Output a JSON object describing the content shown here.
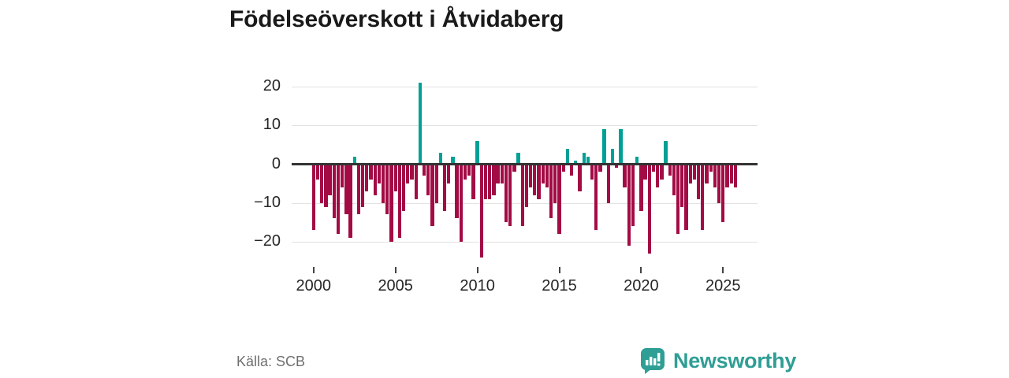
{
  "title": "Födelseöverskott i Åtvidaberg",
  "source": "Källa: SCB",
  "branding": {
    "name": "Newsworthy",
    "color": "#2f9e95",
    "icon": "newsworthy-speech-bubble-bar-chart-icon"
  },
  "colors": {
    "positive": "#00a096",
    "negative": "#a30b45",
    "gridline": "#e2e2e2",
    "zero_axis": "#333333",
    "axis_text": "#262626"
  },
  "chart_data": {
    "type": "bar",
    "title": "Födelseöverskott i Åtvidaberg",
    "xlabel": "",
    "ylabel": "",
    "frequency": "quarterly",
    "start_period": "2000 Q1",
    "end_period": "2025 Q4",
    "ylim": [
      -26,
      24
    ],
    "grid": "horizontal",
    "legend": "none",
    "y_ticks": [
      20,
      10,
      0,
      -10,
      -20
    ],
    "y_tick_labels": [
      "20",
      "10",
      "0",
      "−10",
      "−20"
    ],
    "x_tick_years": [
      2000,
      2005,
      2010,
      2015,
      2020,
      2025
    ],
    "x_tick_labels": [
      "2000",
      "2005",
      "2010",
      "2015",
      "2020",
      "2025"
    ],
    "series": [
      {
        "name": "Födelseöverskott",
        "values": [
          -17,
          -4,
          -10,
          -11,
          -8,
          -14,
          -18,
          -6,
          -13,
          -19,
          2,
          -13,
          -11,
          -7,
          -4,
          -8,
          -5,
          -10,
          -13,
          -20,
          -7,
          -19,
          -12,
          -5,
          -4,
          -9,
          21,
          -3,
          -8,
          -16,
          -10,
          3,
          -12,
          -5,
          2,
          -14,
          -20,
          -4,
          -3,
          -9,
          6,
          -24,
          -9,
          -9,
          -8,
          -5,
          -5,
          -15,
          -16,
          -2,
          3,
          -16,
          -11,
          -6,
          -8,
          -9,
          -5,
          -6,
          -14,
          -10,
          -18,
          -2,
          4,
          -3,
          1,
          -7,
          3,
          2,
          -4,
          -17,
          -2,
          9,
          -10,
          4,
          -1,
          9,
          -6,
          -21,
          -16,
          2,
          -12,
          -4,
          -23,
          -2,
          -6,
          -4,
          6,
          -3,
          -8,
          -18,
          -11,
          -17,
          -5,
          -4,
          -9,
          -17,
          -5,
          -2,
          -6,
          -10,
          -15,
          -6,
          -5,
          -6
        ]
      }
    ]
  }
}
